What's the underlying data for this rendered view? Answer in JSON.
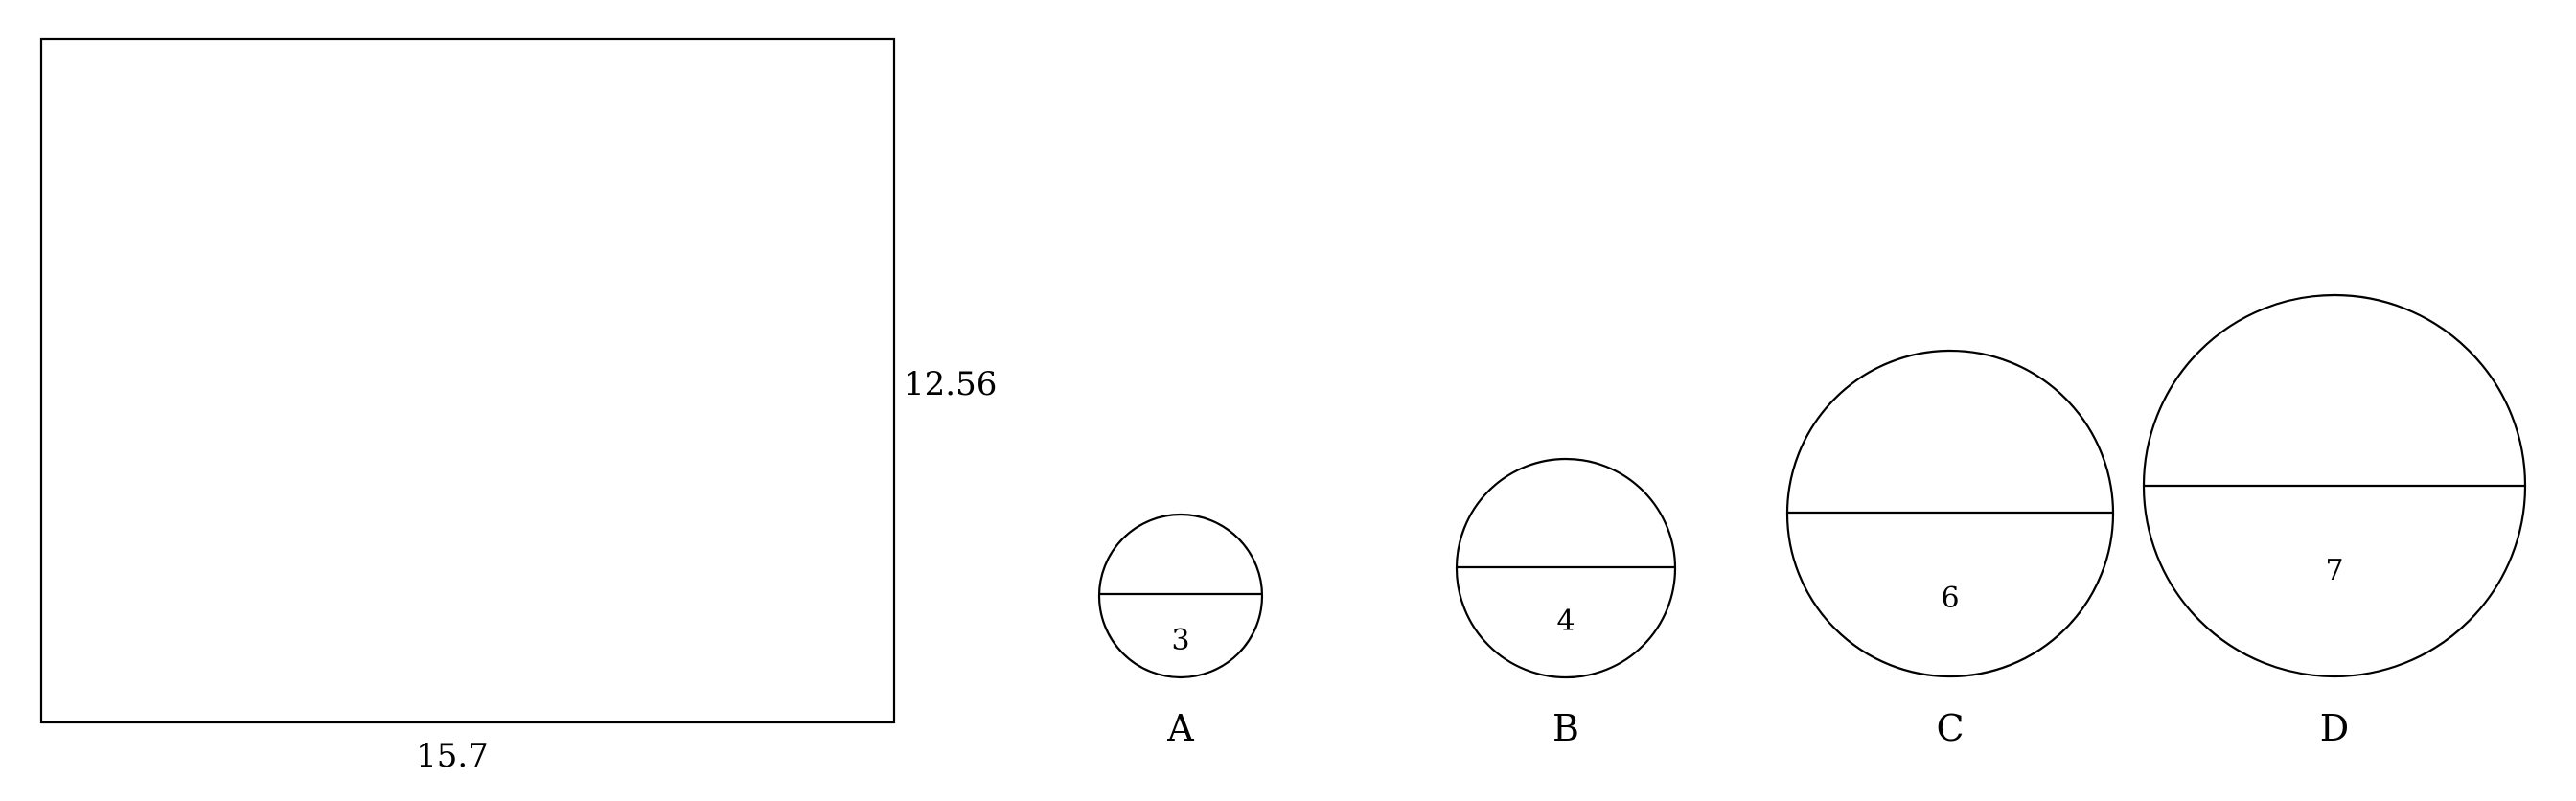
{
  "rectangle": {
    "width_label": "15.7",
    "height_label": "12.56"
  },
  "options": [
    {
      "letter": "A",
      "diameter_label": "3"
    },
    {
      "letter": "B",
      "diameter_label": "4"
    },
    {
      "letter": "C",
      "diameter_label": "6"
    },
    {
      "letter": "D",
      "diameter_label": "7"
    }
  ]
}
